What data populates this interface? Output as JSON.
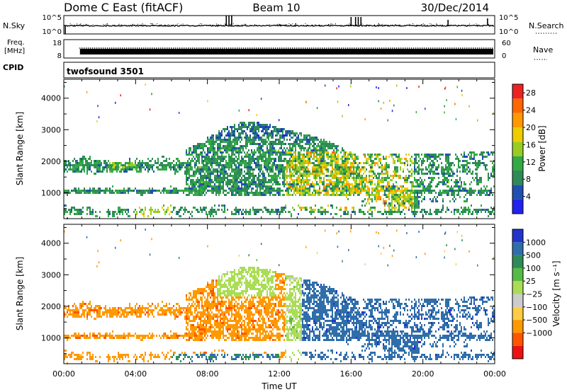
{
  "header": {
    "station": "Dome C East (fitACF)",
    "beam": "Beam 10",
    "date": "30/Dec/2014"
  },
  "params": {
    "nsky_label": "N.Sky",
    "nsearch_label": "N.Search",
    "freq_label_line1": "Freq.",
    "freq_label_line2": "[MHz]",
    "nave_label": "Nave",
    "cpid_label": "CPID",
    "cpid_value": "twofsound 3501",
    "noise_ticks": [
      "10^5",
      "10^0"
    ],
    "freq_ticks": [
      "18",
      "8"
    ],
    "nave_ticks": [
      "60",
      "0"
    ]
  },
  "chart_data": [
    {
      "type": "heatmap",
      "name": "power",
      "ylabel": "Slant Range [km]",
      "ylim": [
        180,
        4600
      ],
      "yticks": [
        "1000",
        "2000",
        "3000",
        "4000"
      ],
      "xlim_hours": [
        0,
        24
      ],
      "colorbar": {
        "label": "Power [dB]",
        "ticks": [
          "4",
          "8",
          "12",
          "16",
          "20",
          "24",
          "28"
        ],
        "colors": [
          "#2222ee",
          "#1f4fb0",
          "#2e8b57",
          "#33aa44",
          "#99cc22",
          "#eecc00",
          "#ff9900",
          "#ff6600",
          "#ee2222"
        ],
        "range": [
          0,
          30
        ]
      }
    },
    {
      "type": "heatmap",
      "name": "velocity",
      "xlabel": "Time UT",
      "ylabel": "Slant Range [km]",
      "ylim": [
        180,
        4600
      ],
      "yticks": [
        "1000",
        "2000",
        "3000",
        "4000"
      ],
      "xticks": [
        "00:00",
        "04:00",
        "08:00",
        "12:00",
        "16:00",
        "20:00",
        "00:00"
      ],
      "xlim_hours": [
        0,
        24
      ],
      "colorbar": {
        "label": "Velocity [m s⁻¹]",
        "ticks": [
          "1000",
          "500",
          "100",
          "25",
          "−25",
          "−100",
          "−500",
          "−1000"
        ],
        "colors": [
          "#2233cc",
          "#2f6eaa",
          "#2e8b57",
          "#55bb44",
          "#aadd55",
          "#cccccc",
          "#ffcc44",
          "#ff9900",
          "#ff5500",
          "#ee1111"
        ]
      }
    }
  ]
}
